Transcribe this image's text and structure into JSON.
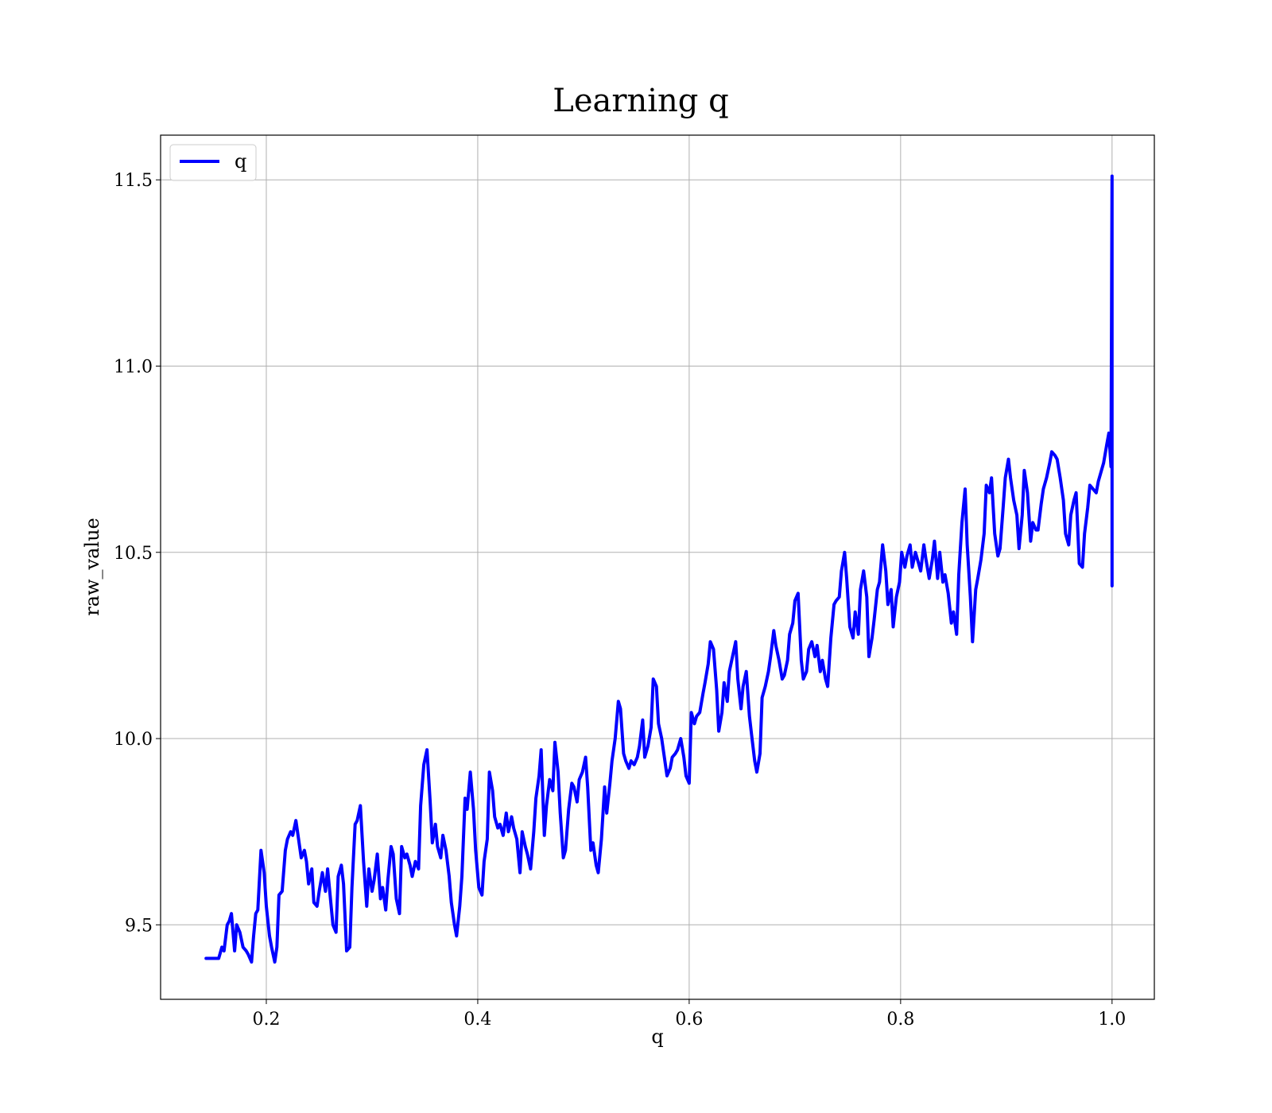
{
  "chart_data": {
    "type": "line",
    "title": "Learning q",
    "xlabel": "q",
    "ylabel": "raw_value",
    "xlim": [
      0.1,
      1.04
    ],
    "ylim": [
      9.3,
      11.62
    ],
    "xticks": [
      0.2,
      0.4,
      0.6,
      0.8,
      1.0
    ],
    "xtick_labels": [
      "0.2",
      "0.4",
      "0.6",
      "0.8",
      "1.0"
    ],
    "yticks": [
      9.5,
      10.0,
      10.5,
      11.0,
      11.5
    ],
    "ytick_labels": [
      "9.5",
      "10.0",
      "10.5",
      "11.0",
      "11.5"
    ],
    "grid": true,
    "legend": {
      "location": "upper left",
      "entries": [
        "q"
      ]
    },
    "series": [
      {
        "name": "q",
        "color": "#0000ff",
        "x": [
          0.143,
          0.155,
          0.158,
          0.16,
          0.163,
          0.165,
          0.167,
          0.17,
          0.172,
          0.175,
          0.178,
          0.181,
          0.183,
          0.186,
          0.188,
          0.19,
          0.192,
          0.195,
          0.198,
          0.2,
          0.203,
          0.205,
          0.208,
          0.21,
          0.212,
          0.215,
          0.218,
          0.22,
          0.223,
          0.225,
          0.228,
          0.23,
          0.233,
          0.236,
          0.238,
          0.24,
          0.243,
          0.245,
          0.248,
          0.25,
          0.253,
          0.256,
          0.258,
          0.261,
          0.263,
          0.266,
          0.268,
          0.271,
          0.273,
          0.276,
          0.279,
          0.281,
          0.284,
          0.286,
          0.289,
          0.292,
          0.295,
          0.297,
          0.3,
          0.302,
          0.305,
          0.308,
          0.31,
          0.313,
          0.315,
          0.318,
          0.32,
          0.323,
          0.326,
          0.328,
          0.331,
          0.333,
          0.336,
          0.338,
          0.341,
          0.344,
          0.346,
          0.349,
          0.352,
          0.355,
          0.357,
          0.36,
          0.362,
          0.365,
          0.367,
          0.37,
          0.373,
          0.375,
          0.378,
          0.38,
          0.383,
          0.385,
          0.388,
          0.39,
          0.393,
          0.396,
          0.398,
          0.401,
          0.404,
          0.406,
          0.409,
          0.411,
          0.414,
          0.416,
          0.419,
          0.421,
          0.424,
          0.427,
          0.429,
          0.432,
          0.434,
          0.437,
          0.44,
          0.442,
          0.445,
          0.447,
          0.45,
          0.453,
          0.455,
          0.458,
          0.46,
          0.463,
          0.465,
          0.468,
          0.471,
          0.473,
          0.476,
          0.478,
          0.481,
          0.483,
          0.486,
          0.489,
          0.491,
          0.494,
          0.496,
          0.499,
          0.502,
          0.504,
          0.507,
          0.509,
          0.512,
          0.514,
          0.517,
          0.52,
          0.522,
          0.525,
          0.527,
          0.53,
          0.533,
          0.535,
          0.538,
          0.54,
          0.543,
          0.545,
          0.548,
          0.551,
          0.553,
          0.556,
          0.558,
          0.561,
          0.564,
          0.566,
          0.569,
          0.571,
          0.574,
          0.576,
          0.579,
          0.582,
          0.584,
          0.587,
          0.589,
          0.592,
          0.595,
          0.597,
          0.6,
          0.602,
          0.605,
          0.607,
          0.61,
          0.613,
          0.615,
          0.618,
          0.62,
          0.623,
          0.626,
          0.628,
          0.631,
          0.633,
          0.636,
          0.638,
          0.641,
          0.644,
          0.646,
          0.649,
          0.651,
          0.654,
          0.657,
          0.659,
          0.662,
          0.664,
          0.667,
          0.669,
          0.672,
          0.675,
          0.677,
          0.68,
          0.682,
          0.685,
          0.688,
          0.69,
          0.693,
          0.695,
          0.698,
          0.7,
          0.703,
          0.706,
          0.708,
          0.711,
          0.713,
          0.716,
          0.719,
          0.721,
          0.724,
          0.726,
          0.729,
          0.731,
          0.734,
          0.737,
          0.739,
          0.742,
          0.744,
          0.747,
          0.749,
          0.752,
          0.755,
          0.757,
          0.76,
          0.762,
          0.765,
          0.768,
          0.77,
          0.773,
          0.775,
          0.778,
          0.78,
          0.783,
          0.786,
          0.788,
          0.791,
          0.793,
          0.796,
          0.799,
          0.801,
          0.804,
          0.806,
          0.809,
          0.811,
          0.814,
          0.817,
          0.819,
          0.822,
          0.824,
          0.827,
          0.83,
          0.832,
          0.835,
          0.837,
          0.84,
          0.842,
          0.845,
          0.848,
          0.85,
          0.853,
          0.855,
          0.858,
          0.861,
          0.863,
          0.866,
          0.868,
          0.871,
          0.873,
          0.876,
          0.879,
          0.881,
          0.884,
          0.886,
          0.889,
          0.892,
          0.894,
          0.897,
          0.899,
          0.902,
          0.904,
          0.907,
          0.91,
          0.912,
          0.915,
          0.917,
          0.92,
          0.923,
          0.925,
          0.928,
          0.93,
          0.933,
          0.935,
          0.938,
          0.941,
          0.943,
          0.946,
          0.948,
          0.951,
          0.954,
          0.956,
          0.959,
          0.961,
          0.964,
          0.966,
          0.969,
          0.972,
          0.974,
          0.977,
          0.979,
          0.982,
          0.985,
          0.987,
          0.99,
          0.992,
          0.995,
          0.997,
          0.999,
          1.0,
          1.0
        ],
        "y": [
          9.41,
          9.41,
          9.44,
          9.43,
          9.5,
          9.51,
          9.53,
          9.43,
          9.5,
          9.48,
          9.44,
          9.43,
          9.42,
          9.4,
          9.47,
          9.53,
          9.54,
          9.7,
          9.64,
          9.55,
          9.47,
          9.44,
          9.4,
          9.44,
          9.58,
          9.59,
          9.7,
          9.73,
          9.75,
          9.74,
          9.78,
          9.74,
          9.68,
          9.7,
          9.67,
          9.61,
          9.65,
          9.56,
          9.55,
          9.59,
          9.64,
          9.59,
          9.65,
          9.56,
          9.5,
          9.48,
          9.63,
          9.66,
          9.61,
          9.43,
          9.44,
          9.6,
          9.77,
          9.78,
          9.82,
          9.67,
          9.55,
          9.65,
          9.59,
          9.62,
          9.69,
          9.57,
          9.6,
          9.54,
          9.62,
          9.71,
          9.69,
          9.57,
          9.53,
          9.71,
          9.68,
          9.69,
          9.66,
          9.63,
          9.67,
          9.65,
          9.82,
          9.93,
          9.97,
          9.83,
          9.72,
          9.77,
          9.71,
          9.68,
          9.74,
          9.7,
          9.63,
          9.56,
          9.5,
          9.47,
          9.55,
          9.63,
          9.84,
          9.81,
          9.91,
          9.81,
          9.7,
          9.6,
          9.58,
          9.67,
          9.73,
          9.91,
          9.86,
          9.79,
          9.76,
          9.77,
          9.74,
          9.8,
          9.75,
          9.79,
          9.76,
          9.73,
          9.64,
          9.75,
          9.71,
          9.69,
          9.65,
          9.75,
          9.84,
          9.9,
          9.97,
          9.74,
          9.82,
          9.89,
          9.86,
          9.99,
          9.91,
          9.8,
          9.68,
          9.7,
          9.81,
          9.88,
          9.87,
          9.83,
          9.89,
          9.91,
          9.95,
          9.87,
          9.7,
          9.72,
          9.66,
          9.64,
          9.73,
          9.87,
          9.8,
          9.88,
          9.94,
          10.0,
          10.1,
          10.08,
          9.96,
          9.94,
          9.92,
          9.94,
          9.93,
          9.95,
          9.98,
          10.05,
          9.95,
          9.98,
          10.03,
          10.16,
          10.14,
          10.04,
          10.0,
          9.96,
          9.9,
          9.92,
          9.95,
          9.96,
          9.97,
          10.0,
          9.95,
          9.9,
          9.88,
          10.07,
          10.04,
          10.06,
          10.07,
          10.12,
          10.15,
          10.2,
          10.26,
          10.24,
          10.13,
          10.02,
          10.07,
          10.15,
          10.1,
          10.18,
          10.22,
          10.26,
          10.16,
          10.08,
          10.14,
          10.18,
          10.06,
          10.01,
          9.94,
          9.91,
          9.96,
          10.11,
          10.14,
          10.18,
          10.22,
          10.29,
          10.25,
          10.21,
          10.16,
          10.17,
          10.21,
          10.28,
          10.31,
          10.37,
          10.39,
          10.21,
          10.16,
          10.18,
          10.24,
          10.26,
          10.22,
          10.25,
          10.18,
          10.21,
          10.16,
          10.14,
          10.27,
          10.36,
          10.37,
          10.38,
          10.45,
          10.5,
          10.43,
          10.3,
          10.27,
          10.34,
          10.28,
          10.4,
          10.45,
          10.38,
          10.22,
          10.27,
          10.32,
          10.4,
          10.42,
          10.52,
          10.45,
          10.36,
          10.4,
          10.3,
          10.38,
          10.42,
          10.5,
          10.46,
          10.49,
          10.52,
          10.46,
          10.5,
          10.47,
          10.45,
          10.52,
          10.48,
          10.43,
          10.48,
          10.53,
          10.43,
          10.5,
          10.42,
          10.44,
          10.39,
          10.31,
          10.34,
          10.28,
          10.44,
          10.58,
          10.67,
          10.52,
          10.38,
          10.26,
          10.4,
          10.43,
          10.48,
          10.55,
          10.68,
          10.66,
          10.7,
          10.55,
          10.49,
          10.51,
          10.62,
          10.7,
          10.75,
          10.7,
          10.64,
          10.6,
          10.51,
          10.6,
          10.72,
          10.66,
          10.53,
          10.58,
          10.56,
          10.56,
          10.63,
          10.67,
          10.7,
          10.74,
          10.77,
          10.76,
          10.75,
          10.7,
          10.64,
          10.55,
          10.52,
          10.6,
          10.64,
          10.66,
          10.47,
          10.46,
          10.55,
          10.62,
          10.68,
          10.67,
          10.66,
          10.69,
          10.72,
          10.74,
          10.79,
          10.82,
          10.73,
          11.51,
          10.41
        ]
      }
    ]
  }
}
